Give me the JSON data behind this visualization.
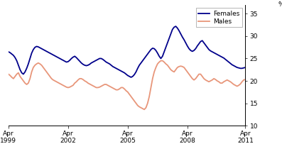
{
  "title": "",
  "xlabel": "",
  "ylabel_right": "%",
  "ylim": [
    10,
    37
  ],
  "yticks": [
    10,
    15,
    20,
    25,
    30,
    35
  ],
  "xtick_positions": [
    0,
    36,
    72,
    108,
    143
  ],
  "xtick_labels": [
    "Apr\n1999",
    "Apr\n2002",
    "Apr\n2005",
    "Apr\n2008",
    "Apr\n2011"
  ],
  "legend_labels": [
    "Females",
    "Males"
  ],
  "females_color": "#00008B",
  "males_color": "#E8967A",
  "background_color": "#ffffff",
  "females_values": [
    26.5,
    26.3,
    26.0,
    25.7,
    25.2,
    24.5,
    23.5,
    22.5,
    21.8,
    21.5,
    22.0,
    22.8,
    23.8,
    25.0,
    26.2,
    27.0,
    27.5,
    27.7,
    27.6,
    27.4,
    27.2,
    27.0,
    26.8,
    26.6,
    26.4,
    26.2,
    26.0,
    25.8,
    25.6,
    25.4,
    25.2,
    25.0,
    24.8,
    24.6,
    24.4,
    24.2,
    24.3,
    24.6,
    25.0,
    25.3,
    25.5,
    25.2,
    24.8,
    24.4,
    24.0,
    23.7,
    23.5,
    23.4,
    23.5,
    23.7,
    24.0,
    24.2,
    24.4,
    24.6,
    24.8,
    25.0,
    25.0,
    24.8,
    24.5,
    24.2,
    24.0,
    23.8,
    23.5,
    23.2,
    23.0,
    22.8,
    22.6,
    22.4,
    22.2,
    22.0,
    21.8,
    21.5,
    21.2,
    21.0,
    20.8,
    21.0,
    21.4,
    22.0,
    22.8,
    23.5,
    24.0,
    24.5,
    25.0,
    25.5,
    26.0,
    26.5,
    27.0,
    27.3,
    27.2,
    26.8,
    26.2,
    25.5,
    25.0,
    25.5,
    26.5,
    27.5,
    28.5,
    29.5,
    30.5,
    31.5,
    32.0,
    32.2,
    31.8,
    31.2,
    30.5,
    29.8,
    29.2,
    28.5,
    27.8,
    27.2,
    26.8,
    26.6,
    26.8,
    27.2,
    27.8,
    28.3,
    28.8,
    29.0,
    28.5,
    28.0,
    27.5,
    27.0,
    26.7,
    26.5,
    26.3,
    26.1,
    25.9,
    25.7,
    25.5,
    25.3,
    25.1,
    24.8,
    24.5,
    24.2,
    23.9,
    23.6,
    23.4,
    23.2,
    23.0,
    22.9,
    22.8,
    22.8,
    22.9,
    23.0
  ],
  "males_values": [
    21.5,
    21.2,
    20.8,
    20.5,
    21.0,
    21.5,
    21.8,
    21.0,
    20.5,
    20.0,
    19.5,
    19.2,
    19.5,
    20.5,
    22.0,
    23.0,
    23.5,
    23.8,
    24.0,
    23.8,
    23.5,
    23.0,
    22.5,
    22.0,
    21.5,
    21.0,
    20.5,
    20.2,
    20.0,
    19.8,
    19.6,
    19.4,
    19.2,
    19.0,
    18.8,
    18.6,
    18.5,
    18.6,
    18.8,
    19.0,
    19.5,
    19.8,
    20.2,
    20.5,
    20.5,
    20.3,
    20.0,
    19.8,
    19.5,
    19.3,
    19.1,
    18.9,
    18.7,
    18.5,
    18.5,
    18.6,
    18.8,
    19.0,
    19.2,
    19.2,
    19.0,
    18.8,
    18.6,
    18.4,
    18.2,
    18.0,
    18.0,
    18.2,
    18.5,
    18.5,
    18.2,
    17.8,
    17.5,
    17.0,
    16.5,
    16.0,
    15.5,
    15.0,
    14.5,
    14.2,
    14.0,
    13.8,
    13.6,
    14.0,
    15.0,
    16.5,
    18.5,
    20.5,
    22.0,
    23.0,
    23.8,
    24.2,
    24.5,
    24.5,
    24.2,
    23.8,
    23.5,
    23.0,
    22.5,
    22.2,
    22.0,
    22.5,
    23.0,
    23.2,
    23.3,
    23.2,
    23.0,
    22.5,
    22.0,
    21.5,
    21.0,
    20.5,
    20.2,
    20.5,
    21.0,
    21.5,
    21.5,
    21.0,
    20.5,
    20.2,
    20.0,
    19.8,
    20.0,
    20.2,
    20.5,
    20.3,
    20.0,
    19.8,
    19.5,
    19.5,
    19.8,
    20.0,
    20.2,
    20.0,
    19.8,
    19.5,
    19.2,
    19.0,
    18.8,
    19.0,
    19.3,
    19.8,
    20.2,
    20.3
  ]
}
